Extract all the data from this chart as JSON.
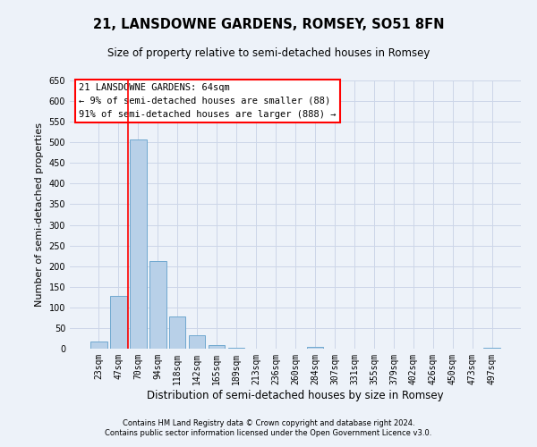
{
  "title": "21, LANSDOWNE GARDENS, ROMSEY, SO51 8FN",
  "subtitle": "Size of property relative to semi-detached houses in Romsey",
  "bar_labels": [
    "23sqm",
    "47sqm",
    "70sqm",
    "94sqm",
    "118sqm",
    "142sqm",
    "165sqm",
    "189sqm",
    "213sqm",
    "236sqm",
    "260sqm",
    "284sqm",
    "307sqm",
    "331sqm",
    "355sqm",
    "379sqm",
    "402sqm",
    "426sqm",
    "450sqm",
    "473sqm",
    "497sqm"
  ],
  "bar_values": [
    18,
    127,
    507,
    213,
    78,
    33,
    9,
    2,
    1,
    0,
    0,
    5,
    0,
    0,
    0,
    0,
    0,
    0,
    0,
    0,
    3
  ],
  "bar_color": "#b8d0e8",
  "bar_edge_color": "#6fa8d0",
  "ylim": [
    0,
    650
  ],
  "yticks": [
    0,
    50,
    100,
    150,
    200,
    250,
    300,
    350,
    400,
    450,
    500,
    550,
    600,
    650
  ],
  "ylabel": "Number of semi-detached properties",
  "xlabel": "Distribution of semi-detached houses by size in Romsey",
  "redline_x": 1.5,
  "annotation_title": "21 LANSDOWNE GARDENS: 64sqm",
  "annotation_line1": "← 9% of semi-detached houses are smaller (88)",
  "annotation_line2": "91% of semi-detached houses are larger (888) →",
  "footer1": "Contains HM Land Registry data © Crown copyright and database right 2024.",
  "footer2": "Contains public sector information licensed under the Open Government Licence v3.0.",
  "grid_color": "#ccd6e8",
  "background_color": "#edf2f9",
  "title_fontsize": 10.5,
  "subtitle_fontsize": 8.5,
  "tick_fontsize": 7,
  "ylabel_fontsize": 8,
  "xlabel_fontsize": 8.5,
  "annotation_fontsize": 7.5,
  "footer_fontsize": 6
}
